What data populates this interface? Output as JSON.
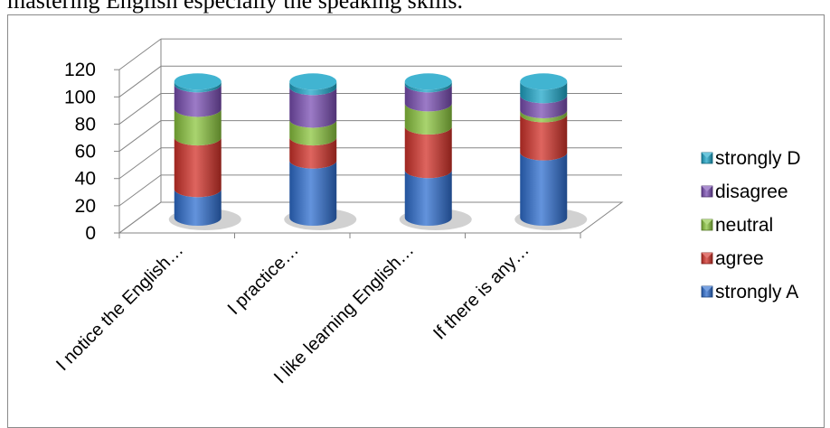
{
  "caption": "mastering English especially the speaking skills.",
  "chart_data": {
    "type": "bar",
    "stacked": true,
    "three_d": true,
    "categories": [
      "I notice the English…",
      "I practice…",
      "I like learning English…",
      "If there is any…"
    ],
    "series": [
      {
        "name": "strongly A",
        "values": [
          21,
          42,
          35,
          48
        ],
        "color": "#2f6fd0"
      },
      {
        "name": "agree",
        "values": [
          38,
          17,
          32,
          28
        ],
        "color": "#d3322a"
      },
      {
        "name": "neutral",
        "values": [
          21,
          13,
          17,
          3
        ],
        "color": "#8cc63f"
      },
      {
        "name": "disagree",
        "values": [
          18,
          24,
          14,
          11
        ],
        "color": "#7b4fb4"
      },
      {
        "name": "strongly D",
        "values": [
          2,
          4,
          2,
          10
        ],
        "color": "#1fa7c9"
      }
    ],
    "yticks": [
      0,
      20,
      40,
      60,
      80,
      100,
      120
    ],
    "ylim": [
      0,
      120
    ],
    "grid": true,
    "legend_position": "right"
  }
}
